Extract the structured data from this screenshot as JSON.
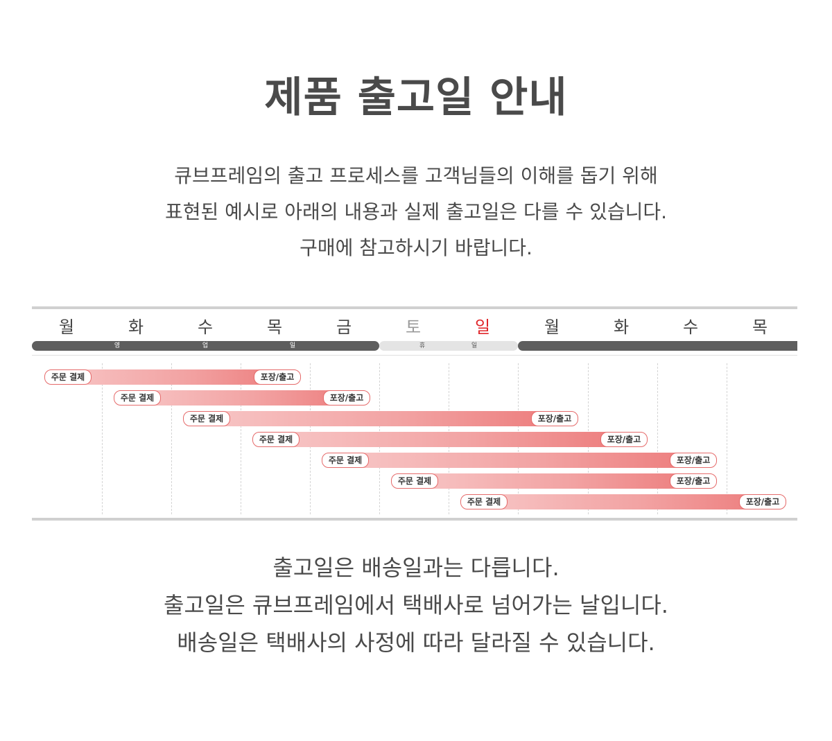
{
  "title": "제품 출고일 안내",
  "intro": [
    "큐브프레임의 출고 프로세스를 고객님들의 이해를 돕기 위해",
    "표현된 예시로 아래의 내용과 실제 출고일은 다를 수 있습니다.",
    "구매에 참고하시기 바랍니다."
  ],
  "days": [
    {
      "label": "월",
      "color": "#444444"
    },
    {
      "label": "화",
      "color": "#444444"
    },
    {
      "label": "수",
      "color": "#444444"
    },
    {
      "label": "목",
      "color": "#444444"
    },
    {
      "label": "금",
      "color": "#444444"
    },
    {
      "label": "토",
      "color": "#9a9a9a"
    },
    {
      "label": "일",
      "color": "#e0262a"
    },
    {
      "label": "월",
      "color": "#444444"
    },
    {
      "label": "화",
      "color": "#444444"
    },
    {
      "label": "수",
      "color": "#444444"
    },
    {
      "label": "목",
      "color": "#444444"
    }
  ],
  "bands": {
    "business_chars": [
      "영",
      "업",
      "일"
    ],
    "holiday_chars": [
      "휴",
      "일"
    ],
    "business_color": "#5e5e5e",
    "holiday_color": "#e4e4e4"
  },
  "orders": [
    {
      "order_label": "주문 결제",
      "ship_label": "포장/출고",
      "order_day": 1,
      "ship_day": 4
    },
    {
      "order_label": "주문 결제",
      "ship_label": "포장/출고",
      "order_day": 2,
      "ship_day": 5
    },
    {
      "order_label": "주문 결제",
      "ship_label": "포장/출고",
      "order_day": 3,
      "ship_day": 8
    },
    {
      "order_label": "주문 결제",
      "ship_label": "포장/출고",
      "order_day": 4,
      "ship_day": 9
    },
    {
      "order_label": "주문 결제",
      "ship_label": "포장/출고",
      "order_day": 5,
      "ship_day": 10
    },
    {
      "order_label": "주문 결제",
      "ship_label": "포장/출고",
      "order_day": 6,
      "ship_day": 10
    },
    {
      "order_label": "주문 결제",
      "ship_label": "포장/출고",
      "order_day": 7,
      "ship_day": 11
    }
  ],
  "outro": [
    "출고일은 배송일과는 다릅니다.",
    "출고일은 큐브프레임에서 택배사로 넘어가는 날입니다.",
    "배송일은 택배사의 사정에 따라 달라질 수 있습니다."
  ]
}
